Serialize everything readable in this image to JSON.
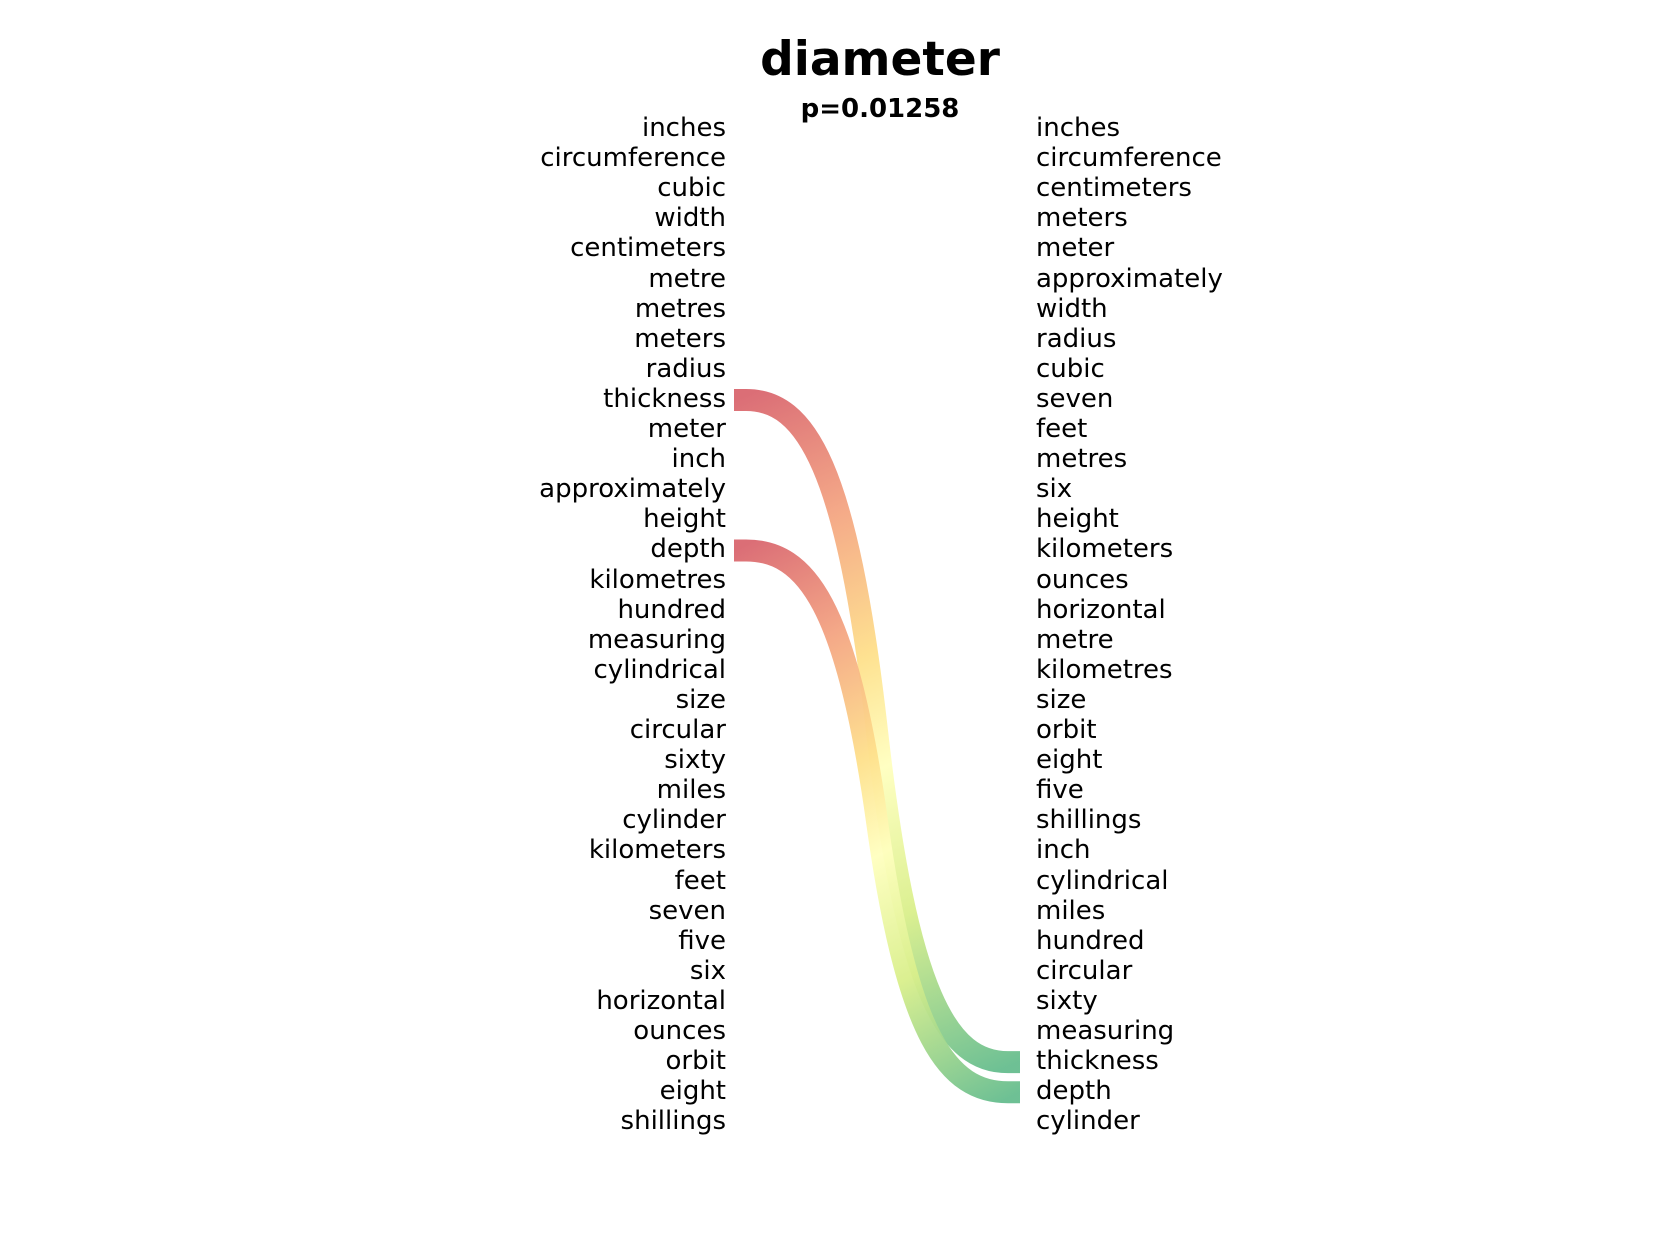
{
  "chart_data": {
    "type": "bump",
    "title": "diameter",
    "subtitle": "p=0.01258",
    "left_ranking": [
      "inches",
      "circumference",
      "cubic",
      "width",
      "centimeters",
      "metre",
      "metres",
      "meters",
      "radius",
      "thickness",
      "meter",
      "inch",
      "approximately",
      "height",
      "depth",
      "kilometres",
      "hundred",
      "measuring",
      "cylindrical",
      "size",
      "circular",
      "sixty",
      "miles",
      "cylinder",
      "kilometers",
      "feet",
      "seven",
      "five",
      "six",
      "horizontal",
      "ounces",
      "orbit",
      "eight",
      "shillings"
    ],
    "right_ranking": [
      "inches",
      "circumference",
      "centimeters",
      "meters",
      "meter",
      "approximately",
      "width",
      "radius",
      "cubic",
      "seven",
      "feet",
      "metres",
      "six",
      "height",
      "kilometers",
      "ounces",
      "horizontal",
      "metre",
      "kilometres",
      "size",
      "orbit",
      "eight",
      "five",
      "shillings",
      "inch",
      "cylindrical",
      "miles",
      "hundred",
      "circular",
      "sixty",
      "measuring",
      "thickness",
      "depth",
      "cylinder"
    ],
    "highlighted_links": [
      {
        "word": "thickness",
        "left_rank": 10,
        "right_rank": 32
      },
      {
        "word": "depth",
        "left_rank": 15,
        "right_rank": 33
      }
    ],
    "colors": {
      "start": "#d9666f",
      "mid1": "#f4a582",
      "mid2": "#fee08b",
      "mid3": "#ffffbf",
      "mid4": "#d9ef8b",
      "end": "#66bd8f"
    }
  }
}
